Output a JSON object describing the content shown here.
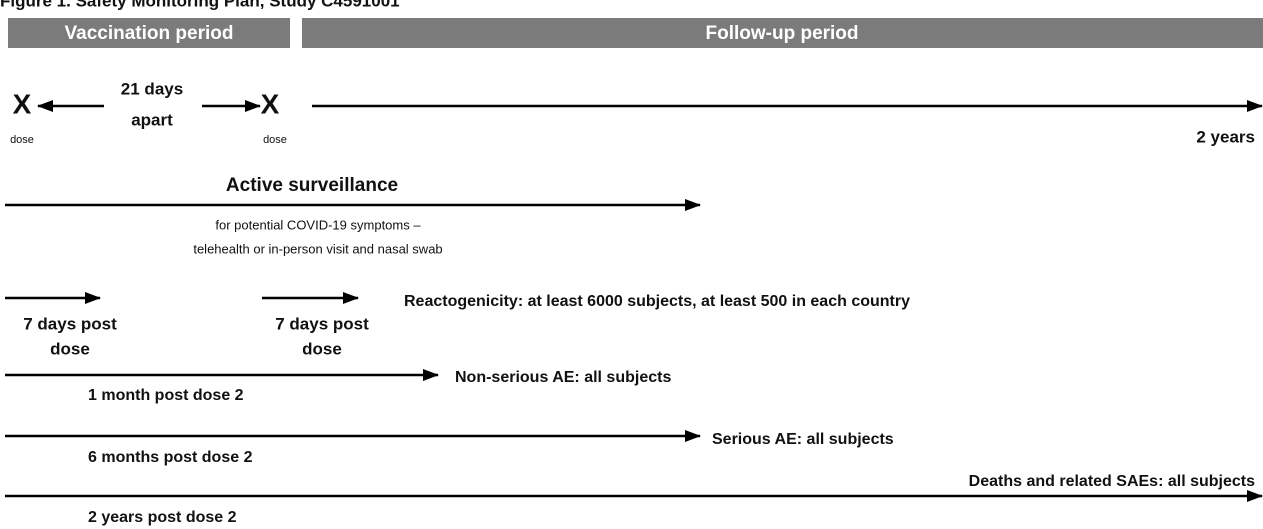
{
  "title": "Figure 1. Safety Monitoring Plan, Study C4591001",
  "phases": [
    "Vaccination period",
    "Follow-up period"
  ],
  "timeline": {
    "dose_marks": [
      "X",
      "X"
    ],
    "dose_labels": [
      "dose",
      "dose"
    ],
    "interval": [
      "21 days",
      "apart"
    ],
    "end": "2 years"
  },
  "surveillance": {
    "title": "Active surveillance",
    "notes": [
      "for potential COVID-19 symptoms –",
      "telehealth or in-person visit and nasal swab"
    ]
  },
  "reactogenicity": {
    "windows": [
      [
        "7 days post",
        "dose"
      ],
      [
        "7 days post",
        "dose"
      ]
    ],
    "label": "Reactogenicity: at least 6000 subjects, at least 500 in each country"
  },
  "rows": [
    {
      "label": "Non-serious AE: all subjects",
      "duration": "1 month post dose 2"
    },
    {
      "label": "Serious AE: all subjects",
      "duration": "6 months post dose 2"
    },
    {
      "label": "Deaths and related SAEs: all subjects",
      "duration": "2 years post dose 2"
    }
  ]
}
